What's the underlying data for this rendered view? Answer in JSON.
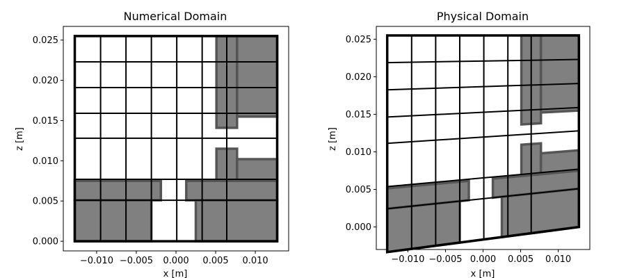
{
  "figure": {
    "background": "#ffffff"
  },
  "chart_data": [
    {
      "type": "mesh",
      "title": "Numerical Domain",
      "xlabel": "x [m]",
      "ylabel": "z [m]",
      "xlim": [
        -0.0142,
        0.0142
      ],
      "ylim": [
        -0.0012,
        0.0267
      ],
      "xticks": [
        -0.01,
        -0.005,
        0.0,
        0.005,
        0.01
      ],
      "xtick_labels": [
        "−0.010",
        "−0.005",
        "0.000",
        "0.005",
        "0.010"
      ],
      "yticks": [
        0.0,
        0.005,
        0.01,
        0.015,
        0.02,
        0.025
      ],
      "ytick_labels": [
        "0.000",
        "0.005",
        "0.010",
        "0.015",
        "0.020",
        "0.025"
      ],
      "grid_x": [
        -0.01275,
        -0.0095,
        -0.0063,
        -0.0031,
        0.0001,
        0.0033,
        0.0064,
        0.01275
      ],
      "grid_z": [
        0.0,
        0.0051,
        0.0077,
        0.0128,
        0.0159,
        0.0191,
        0.0223,
        0.0255
      ],
      "blocks": [
        {
          "x0": -0.01275,
          "x1": -0.0019,
          "z0": 0.0051,
          "z1": 0.0075
        },
        {
          "x0": -0.01275,
          "x1": -0.0031,
          "z0": 0.0,
          "z1": 0.0051
        },
        {
          "x0": 0.0013,
          "x1": 0.01275,
          "z0": 0.0051,
          "z1": 0.0075
        },
        {
          "x0": 0.0025,
          "x1": 0.01275,
          "z0": 0.0,
          "z1": 0.0051
        },
        {
          "x0": 0.0051,
          "x1": 0.0077,
          "z0": 0.0075,
          "z1": 0.0115
        },
        {
          "x0": 0.0077,
          "x1": 0.01275,
          "z0": 0.0075,
          "z1": 0.0102
        },
        {
          "x0": 0.0051,
          "x1": 0.0077,
          "z0": 0.0141,
          "z1": 0.0255
        },
        {
          "x0": 0.0077,
          "x1": 0.01275,
          "z0": 0.0155,
          "z1": 0.0255
        }
      ],
      "tilt": 0.0,
      "fill_color": "#808080",
      "edge_color": "#555555"
    },
    {
      "type": "mesh",
      "title": "Physical Domain",
      "xlabel": "x [m]",
      "ylabel": "z [m]",
      "xlim": [
        -0.0142,
        0.0142
      ],
      "ylim": [
        -0.003,
        0.0267
      ],
      "xticks": [
        -0.01,
        -0.005,
        0.0,
        0.005,
        0.01
      ],
      "xtick_labels": [
        "−0.010",
        "−0.005",
        "0.000",
        "0.005",
        "0.010"
      ],
      "yticks": [
        0.0,
        0.005,
        0.01,
        0.015,
        0.02,
        0.025
      ],
      "ytick_labels": [
        "0.000",
        "0.005",
        "0.010",
        "0.015",
        "0.020",
        "0.025"
      ],
      "grid_x": [
        -0.01275,
        -0.0095,
        -0.0063,
        -0.0031,
        0.0001,
        0.0033,
        0.0064,
        0.01275
      ],
      "grid_z": [
        0.0,
        0.0051,
        0.0077,
        0.0128,
        0.0159,
        0.0191,
        0.0223,
        0.0255
      ],
      "blocks": [
        {
          "x0": -0.01275,
          "x1": -0.0019,
          "z0": 0.0051,
          "z1": 0.0075
        },
        {
          "x0": -0.01275,
          "x1": -0.0031,
          "z0": 0.0,
          "z1": 0.0051
        },
        {
          "x0": 0.0013,
          "x1": 0.01275,
          "z0": 0.0051,
          "z1": 0.0075
        },
        {
          "x0": 0.0025,
          "x1": 0.01275,
          "z0": 0.0,
          "z1": 0.0051
        },
        {
          "x0": 0.0051,
          "x1": 0.0077,
          "z0": 0.0075,
          "z1": 0.0115
        },
        {
          "x0": 0.0077,
          "x1": 0.01275,
          "z0": 0.0075,
          "z1": 0.0102
        },
        {
          "x0": 0.0051,
          "x1": 0.0077,
          "z0": 0.0141,
          "z1": 0.0255
        },
        {
          "x0": 0.0077,
          "x1": 0.01275,
          "z0": 0.0155,
          "z1": 0.0255
        }
      ],
      "tilt": 0.131,
      "fill_color": "#808080",
      "edge_color": "#555555"
    }
  ]
}
